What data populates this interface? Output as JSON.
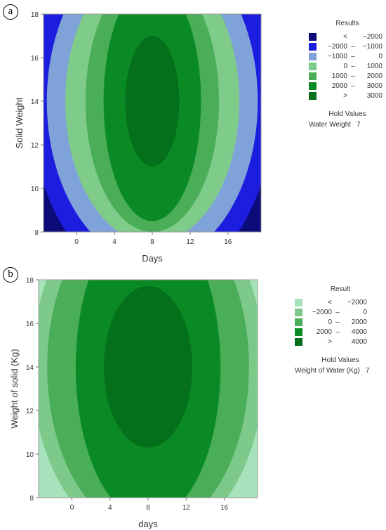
{
  "chart_data": [
    {
      "type": "contour",
      "panel_label": "a",
      "xlabel": "Days",
      "ylabel": "Solid Weight",
      "xlim": [
        -3.5,
        19.5
      ],
      "ylim": [
        8,
        18
      ],
      "x_ticks": [
        "0",
        "4",
        "8",
        "12",
        "16"
      ],
      "y_ticks": [
        "8",
        "10",
        "12",
        "14",
        "16",
        "18"
      ],
      "center": {
        "x": 8,
        "y": 14
      },
      "levels": [
        {
          "range": "< −2000",
          "color": "#0b0b7a",
          "semi_axes": [
            99,
            99
          ]
        },
        {
          "range": "−2000 – −1000",
          "color": "#1d1de0",
          "semi_axes": [
            12.85,
            8.5
          ]
        },
        {
          "range": "−1000 – 0",
          "color": "#7fa3d8",
          "semi_axes": [
            11.15,
            7.4
          ]
        },
        {
          "range": "0 – 1000",
          "color": "#7fcb8a",
          "semi_axes": [
            9.2,
            6.5
          ]
        },
        {
          "range": "1000 – 2000",
          "color": "#4aad57",
          "semi_axes": [
            7.05,
            6.0
          ]
        },
        {
          "range": "2000 – 3000",
          "color": "#0a8a24",
          "semi_axes": [
            5.15,
            5.5
          ]
        },
        {
          "range": "> 3000",
          "color": "#05701b",
          "semi_axes": [
            2.85,
            3.0
          ]
        }
      ],
      "legend": {
        "title": "Results",
        "entries": [
          {
            "lo": "<",
            "hi": "−2000",
            "color": "#0b0b7a"
          },
          {
            "lo": "−2000",
            "dash": "–",
            "hi": "−1000",
            "color": "#1d1de0"
          },
          {
            "lo": "−1000",
            "dash": "–",
            "hi": "0",
            "color": "#7fa3d8"
          },
          {
            "lo": "0",
            "dash": "–",
            "hi": "1000",
            "color": "#7fcb8a"
          },
          {
            "lo": "1000",
            "dash": "–",
            "hi": "2000",
            "color": "#4aad57"
          },
          {
            "lo": "2000",
            "dash": "–",
            "hi": "3000",
            "color": "#0a8a24"
          },
          {
            "lo": ">",
            "hi": "3000",
            "color": "#05701b"
          }
        ]
      },
      "hold_values": {
        "title": "Hold Values",
        "name": "Water Weight",
        "value": "7"
      }
    },
    {
      "type": "contour",
      "panel_label": "b",
      "xlabel": "days",
      "ylabel": "Weight of solid (Kg)",
      "xlim": [
        -3.5,
        19.5
      ],
      "ylim": [
        8,
        18
      ],
      "x_ticks": [
        "0",
        "4",
        "8",
        "12",
        "16"
      ],
      "y_ticks": [
        "8",
        "10",
        "12",
        "14",
        "16",
        "18"
      ],
      "center": {
        "x": 8,
        "y": 14
      },
      "levels": [
        {
          "range": "< −2000",
          "color": "#a6e3bd",
          "semi_axes": [
            99,
            99
          ]
        },
        {
          "range": "−2000 – 0",
          "color": "#7cc98a",
          "semi_axes": [
            12.2,
            8.2
          ]
        },
        {
          "range": "0 – 2000",
          "color": "#4aad57",
          "semi_axes": [
            10.6,
            7.6
          ]
        },
        {
          "range": "2000 – 4000",
          "color": "#0a8a24",
          "semi_axes": [
            7.6,
            7.0
          ]
        },
        {
          "range": "> 4000",
          "color": "#05701b",
          "semi_axes": [
            4.65,
            3.7
          ]
        }
      ],
      "legend": {
        "title": "Result",
        "entries": [
          {
            "lo": "<",
            "hi": "−2000",
            "color": "#a6e3bd"
          },
          {
            "lo": "−2000",
            "dash": "–",
            "hi": "0",
            "color": "#7cc98a"
          },
          {
            "lo": "0",
            "dash": "–",
            "hi": "2000",
            "color": "#4aad57"
          },
          {
            "lo": "2000",
            "dash": "–",
            "hi": "4000",
            "color": "#0a8a24"
          },
          {
            "lo": ">",
            "hi": "4000",
            "color": "#05701b"
          }
        ]
      },
      "hold_values": {
        "title": "Hold Values",
        "name": "Weight of Water (Kg)",
        "value": "7"
      }
    }
  ]
}
